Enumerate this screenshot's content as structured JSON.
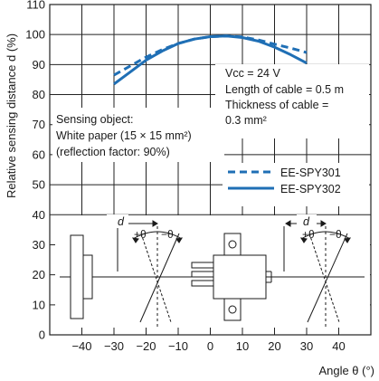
{
  "chart_data": {
    "type": "line",
    "title": "",
    "xlabel": "Angle θ (°)",
    "ylabel": "Relative sensing distance d (%)",
    "xlim": [
      -50,
      50
    ],
    "ylim": [
      0,
      110
    ],
    "x_ticks": [
      "−40",
      "−30",
      "−20",
      "−10",
      "0",
      "10",
      "20",
      "30",
      "40"
    ],
    "y_ticks": [
      "0",
      "10",
      "20",
      "30",
      "40",
      "50",
      "60",
      "70",
      "80",
      "90",
      "100",
      "110"
    ],
    "grid": true,
    "legend_position": "right",
    "series": [
      {
        "name": "EE-SPY301",
        "style": "dashed",
        "color": "#1f6fb5",
        "x": [
          -30,
          -25,
          -20,
          -15,
          -10,
          -5,
          0,
          5,
          10,
          15,
          20,
          25,
          30
        ],
        "y": [
          86.5,
          89.5,
          92.5,
          95,
          97,
          98.5,
          99.3,
          99.5,
          99.2,
          98.2,
          96.8,
          95.5,
          94
        ]
      },
      {
        "name": "EE-SPY302",
        "style": "solid",
        "color": "#1f6fb5",
        "x": [
          -30,
          -25,
          -20,
          -15,
          -10,
          -5,
          0,
          5,
          10,
          15,
          20,
          25,
          30
        ],
        "y": [
          83.5,
          87.5,
          91.5,
          94.5,
          97,
          98.5,
          99.3,
          99.5,
          99,
          97.8,
          95.8,
          93.3,
          90.5
        ]
      }
    ],
    "annotations": {
      "conditions": [
        "Vcc = 24 V",
        "Length of cable = 0.5 m",
        "Thickness of cable =",
        "0.3 mm²"
      ],
      "sensing_object": [
        "Sensing object:",
        "White paper (15 × 15 mm²)",
        "(reflection factor: 90%)"
      ]
    },
    "diagram_labels": {
      "distance": "d",
      "plus_theta": "+θ",
      "minus_theta": "−θ"
    }
  },
  "colors": {
    "series": "#1f6fb5",
    "grid": "#222222",
    "text": "#1a1a1a"
  }
}
